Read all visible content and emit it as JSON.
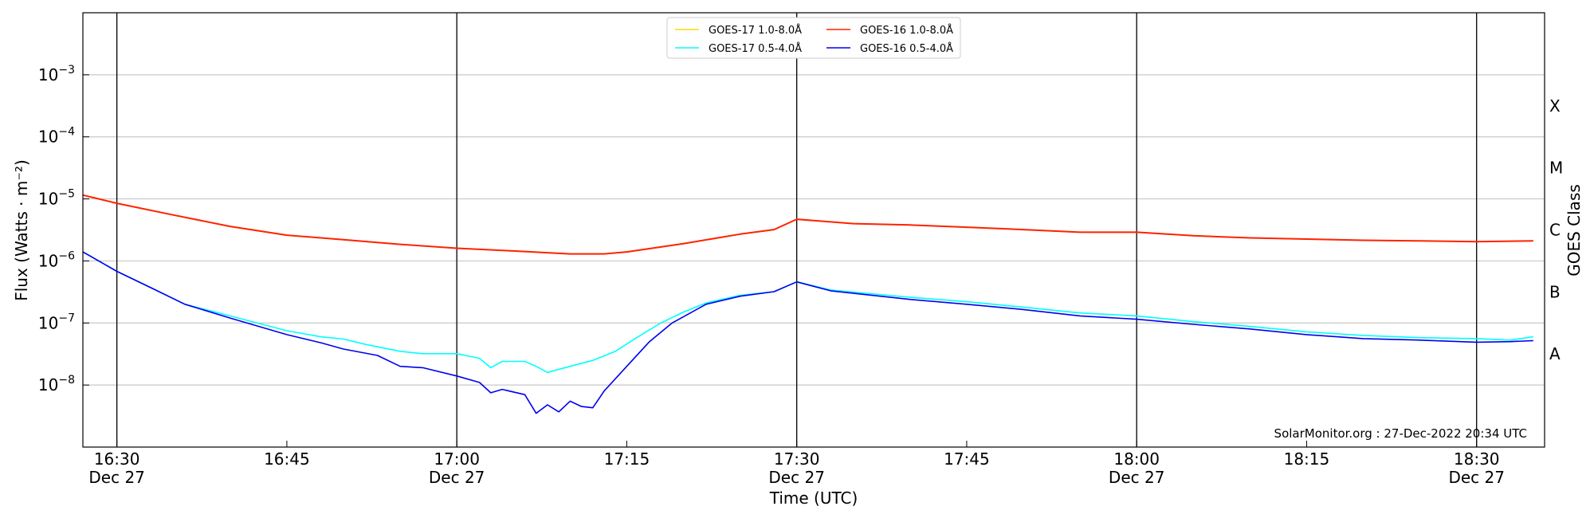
{
  "chart_data": {
    "type": "line",
    "title": "",
    "xlabel": "Time (UTC)",
    "ylabel": "Flux (Watts · m⁻²)",
    "y2label": "GOES Class",
    "yscale": "log",
    "ylim": [
      1e-09,
      0.01
    ],
    "xlim": [
      "16:27",
      "18:36"
    ],
    "grid": "horizontal at y ticks",
    "legend_position": "top-center",
    "x_ticks": [
      {
        "t": "16:30",
        "label": "16:30",
        "sublabel": "Dec 27"
      },
      {
        "t": "16:45",
        "label": "16:45",
        "sublabel": ""
      },
      {
        "t": "17:00",
        "label": "17:00",
        "sublabel": "Dec 27"
      },
      {
        "t": "17:15",
        "label": "17:15",
        "sublabel": ""
      },
      {
        "t": "17:30",
        "label": "17:30",
        "sublabel": "Dec 27"
      },
      {
        "t": "17:45",
        "label": "17:45",
        "sublabel": ""
      },
      {
        "t": "18:00",
        "label": "18:00",
        "sublabel": "Dec 27"
      },
      {
        "t": "18:15",
        "label": "18:15",
        "sublabel": ""
      },
      {
        "t": "18:30",
        "label": "18:30",
        "sublabel": "Dec 27"
      }
    ],
    "vertical_markers": [
      "16:30",
      "17:00",
      "17:30",
      "18:00",
      "18:30"
    ],
    "y_ticks": [
      {
        "value": 0.001,
        "base": "10",
        "exp": "−3"
      },
      {
        "value": 0.0001,
        "base": "10",
        "exp": "−4"
      },
      {
        "value": 1e-05,
        "base": "10",
        "exp": "−5"
      },
      {
        "value": 1e-06,
        "base": "10",
        "exp": "−6"
      },
      {
        "value": 1e-07,
        "base": "10",
        "exp": "−7"
      },
      {
        "value": 1e-08,
        "base": "10",
        "exp": "−8"
      }
    ],
    "goes_classes": [
      {
        "label": "X",
        "value": 0.000316
      },
      {
        "label": "M",
        "value": 3.16e-05
      },
      {
        "label": "C",
        "value": 3.16e-06
      },
      {
        "label": "B",
        "value": 3.16e-07
      },
      {
        "label": "A",
        "value": 3.16e-08
      }
    ],
    "series": [
      {
        "name": "GOES-17 1.0-8.0Å",
        "color": "#ffd700",
        "points": [
          [
            "16:27",
            1.15e-05
          ],
          [
            "16:30",
            8.5e-06
          ],
          [
            "16:35",
            5.5e-06
          ],
          [
            "16:40",
            3.6e-06
          ],
          [
            "16:45",
            2.6e-06
          ],
          [
            "16:50",
            2.2e-06
          ],
          [
            "16:55",
            1.85e-06
          ],
          [
            "17:00",
            1.6e-06
          ],
          [
            "17:05",
            1.45e-06
          ],
          [
            "17:10",
            1.3e-06
          ],
          [
            "17:13",
            1.3e-06
          ],
          [
            "17:15",
            1.4e-06
          ],
          [
            "17:20",
            1.9e-06
          ],
          [
            "17:25",
            2.7e-06
          ],
          [
            "17:28",
            3.2e-06
          ],
          [
            "17:30",
            4.7e-06
          ],
          [
            "17:35",
            4e-06
          ],
          [
            "17:40",
            3.8e-06
          ],
          [
            "17:45",
            3.5e-06
          ],
          [
            "17:50",
            3.2e-06
          ],
          [
            "17:55",
            2.9e-06
          ],
          [
            "18:00",
            2.9e-06
          ],
          [
            "18:05",
            2.55e-06
          ],
          [
            "18:10",
            2.35e-06
          ],
          [
            "18:15",
            2.25e-06
          ],
          [
            "18:20",
            2.15e-06
          ],
          [
            "18:25",
            2.1e-06
          ],
          [
            "18:30",
            2.05e-06
          ],
          [
            "18:35",
            2.1e-06
          ]
        ]
      },
      {
        "name": "GOES-17 0.5-4.0Å",
        "color": "#00ffff",
        "points": [
          [
            "16:27",
            1.4e-06
          ],
          [
            "16:30",
            6.8e-07
          ],
          [
            "16:33",
            3.7e-07
          ],
          [
            "16:36",
            2e-07
          ],
          [
            "16:40",
            1.3e-07
          ],
          [
            "16:45",
            7.5e-08
          ],
          [
            "16:48",
            6e-08
          ],
          [
            "16:50",
            5.5e-08
          ],
          [
            "16:52",
            4.5e-08
          ],
          [
            "16:55",
            3.5e-08
          ],
          [
            "16:57",
            3.2e-08
          ],
          [
            "17:00",
            3.2e-08
          ],
          [
            "17:02",
            2.7e-08
          ],
          [
            "17:03",
            1.9e-08
          ],
          [
            "17:04",
            2.4e-08
          ],
          [
            "17:06",
            2.4e-08
          ],
          [
            "17:07",
            2e-08
          ],
          [
            "17:08",
            1.6e-08
          ],
          [
            "17:10",
            2e-08
          ],
          [
            "17:12",
            2.5e-08
          ],
          [
            "17:14",
            3.5e-08
          ],
          [
            "17:16",
            6e-08
          ],
          [
            "17:18",
            1e-07
          ],
          [
            "17:20",
            1.5e-07
          ],
          [
            "17:22",
            2.1e-07
          ],
          [
            "17:25",
            2.8e-07
          ],
          [
            "17:28",
            3.2e-07
          ],
          [
            "17:30",
            4.6e-07
          ],
          [
            "17:33",
            3.4e-07
          ],
          [
            "17:40",
            2.6e-07
          ],
          [
            "17:45",
            2.2e-07
          ],
          [
            "17:50",
            1.8e-07
          ],
          [
            "17:55",
            1.45e-07
          ],
          [
            "18:00",
            1.3e-07
          ],
          [
            "18:05",
            1.05e-07
          ],
          [
            "18:10",
            8.8e-08
          ],
          [
            "18:15",
            7.2e-08
          ],
          [
            "18:20",
            6.3e-08
          ],
          [
            "18:25",
            5.8e-08
          ],
          [
            "18:30",
            5.6e-08
          ],
          [
            "18:33",
            5.3e-08
          ],
          [
            "18:35",
            6e-08
          ]
        ]
      },
      {
        "name": "GOES-16 1.0-8.0Å",
        "color": "#ff2200",
        "points": [
          [
            "16:27",
            1.15e-05
          ],
          [
            "16:30",
            8.5e-06
          ],
          [
            "16:35",
            5.5e-06
          ],
          [
            "16:40",
            3.6e-06
          ],
          [
            "16:45",
            2.6e-06
          ],
          [
            "16:50",
            2.2e-06
          ],
          [
            "16:55",
            1.85e-06
          ],
          [
            "17:00",
            1.6e-06
          ],
          [
            "17:05",
            1.45e-06
          ],
          [
            "17:10",
            1.3e-06
          ],
          [
            "17:13",
            1.3e-06
          ],
          [
            "17:15",
            1.4e-06
          ],
          [
            "17:20",
            1.9e-06
          ],
          [
            "17:25",
            2.7e-06
          ],
          [
            "17:28",
            3.2e-06
          ],
          [
            "17:30",
            4.7e-06
          ],
          [
            "17:35",
            4e-06
          ],
          [
            "17:40",
            3.8e-06
          ],
          [
            "17:45",
            3.5e-06
          ],
          [
            "17:50",
            3.2e-06
          ],
          [
            "17:55",
            2.9e-06
          ],
          [
            "18:00",
            2.9e-06
          ],
          [
            "18:05",
            2.55e-06
          ],
          [
            "18:10",
            2.35e-06
          ],
          [
            "18:15",
            2.25e-06
          ],
          [
            "18:20",
            2.15e-06
          ],
          [
            "18:25",
            2.1e-06
          ],
          [
            "18:30",
            2.05e-06
          ],
          [
            "18:35",
            2.1e-06
          ]
        ]
      },
      {
        "name": "GOES-16 0.5-4.0Å",
        "color": "#0000ee",
        "points": [
          [
            "16:27",
            1.4e-06
          ],
          [
            "16:30",
            6.8e-07
          ],
          [
            "16:33",
            3.7e-07
          ],
          [
            "16:36",
            2e-07
          ],
          [
            "16:40",
            1.2e-07
          ],
          [
            "16:45",
            6.5e-08
          ],
          [
            "16:48",
            4.8e-08
          ],
          [
            "16:50",
            3.8e-08
          ],
          [
            "16:53",
            3e-08
          ],
          [
            "16:55",
            2e-08
          ],
          [
            "16:57",
            1.9e-08
          ],
          [
            "17:00",
            1.4e-08
          ],
          [
            "17:02",
            1.1e-08
          ],
          [
            "17:03",
            7.5e-09
          ],
          [
            "17:04",
            8.5e-09
          ],
          [
            "17:06",
            7e-09
          ],
          [
            "17:07",
            3.5e-09
          ],
          [
            "17:08",
            4.8e-09
          ],
          [
            "17:09",
            3.7e-09
          ],
          [
            "17:10",
            5.5e-09
          ],
          [
            "17:11",
            4.5e-09
          ],
          [
            "17:12",
            4.3e-09
          ],
          [
            "17:13",
            8e-09
          ],
          [
            "17:15",
            2e-08
          ],
          [
            "17:17",
            5e-08
          ],
          [
            "17:19",
            1e-07
          ],
          [
            "17:22",
            2e-07
          ],
          [
            "17:25",
            2.7e-07
          ],
          [
            "17:28",
            3.2e-07
          ],
          [
            "17:30",
            4.6e-07
          ],
          [
            "17:33",
            3.3e-07
          ],
          [
            "17:40",
            2.4e-07
          ],
          [
            "17:45",
            2e-07
          ],
          [
            "17:50",
            1.65e-07
          ],
          [
            "17:55",
            1.3e-07
          ],
          [
            "18:00",
            1.15e-07
          ],
          [
            "18:05",
            9.5e-08
          ],
          [
            "18:10",
            8e-08
          ],
          [
            "18:15",
            6.5e-08
          ],
          [
            "18:20",
            5.6e-08
          ],
          [
            "18:25",
            5.3e-08
          ],
          [
            "18:30",
            4.9e-08
          ],
          [
            "18:33",
            5e-08
          ],
          [
            "18:35",
            5.2e-08
          ]
        ]
      }
    ],
    "legend_order": [
      0,
      1,
      2,
      3
    ],
    "annotation": "SolarMonitor.org : 27-Dec-2022 20:34 UTC"
  }
}
